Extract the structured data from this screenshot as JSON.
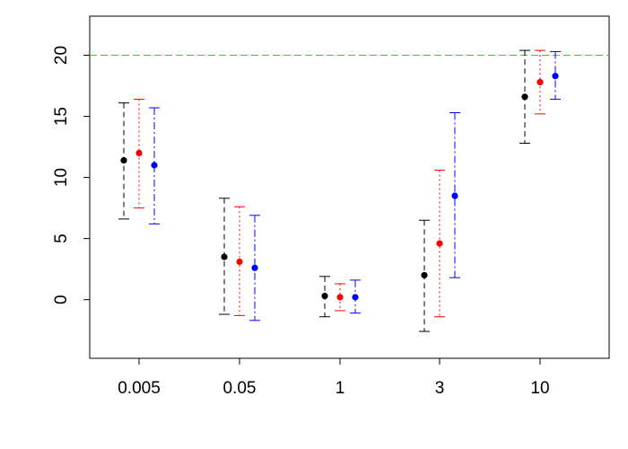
{
  "chart_data": {
    "type": "scatter",
    "title": "",
    "xlabel": "",
    "ylabel": "",
    "categories": [
      "0.005",
      "0.05",
      "1",
      "3",
      "10"
    ],
    "ylim": [
      -4.8,
      23.2
    ],
    "yticks": [
      0,
      5,
      10,
      15,
      20
    ],
    "grid": false,
    "reference_line": {
      "y": 20,
      "color": "#33cc33"
    },
    "series": [
      {
        "color": "#000000",
        "line_style": "dashed",
        "points": [
          {
            "category": "0.005",
            "y": 11.4,
            "lower": 6.6,
            "upper": 16.1
          },
          {
            "category": "0.05",
            "y": 3.5,
            "lower": -1.2,
            "upper": 8.3
          },
          {
            "category": "1",
            "y": 0.3,
            "lower": -1.4,
            "upper": 1.9
          },
          {
            "category": "3",
            "y": 2.0,
            "lower": -2.6,
            "upper": 6.5
          },
          {
            "category": "10",
            "y": 16.6,
            "lower": 12.8,
            "upper": 20.4
          }
        ]
      },
      {
        "color": "#ff0000",
        "line_style": "dotted",
        "points": [
          {
            "category": "0.005",
            "y": 12.0,
            "lower": 7.5,
            "upper": 16.4
          },
          {
            "category": "0.05",
            "y": 3.1,
            "lower": -1.3,
            "upper": 7.6
          },
          {
            "category": "1",
            "y": 0.2,
            "lower": -0.9,
            "upper": 1.3
          },
          {
            "category": "3",
            "y": 4.6,
            "lower": -1.4,
            "upper": 10.6
          },
          {
            "category": "10",
            "y": 17.8,
            "lower": 15.2,
            "upper": 20.4
          }
        ]
      },
      {
        "color": "#0000ff",
        "line_style": "dashdot",
        "points": [
          {
            "category": "0.005",
            "y": 11.0,
            "lower": 6.2,
            "upper": 15.7
          },
          {
            "category": "0.05",
            "y": 2.6,
            "lower": -1.7,
            "upper": 6.9
          },
          {
            "category": "1",
            "y": 0.2,
            "lower": -1.1,
            "upper": 1.6
          },
          {
            "category": "3",
            "y": 8.5,
            "lower": 1.8,
            "upper": 15.3
          },
          {
            "category": "10",
            "y": 18.3,
            "lower": 16.4,
            "upper": 20.3
          }
        ]
      }
    ]
  }
}
